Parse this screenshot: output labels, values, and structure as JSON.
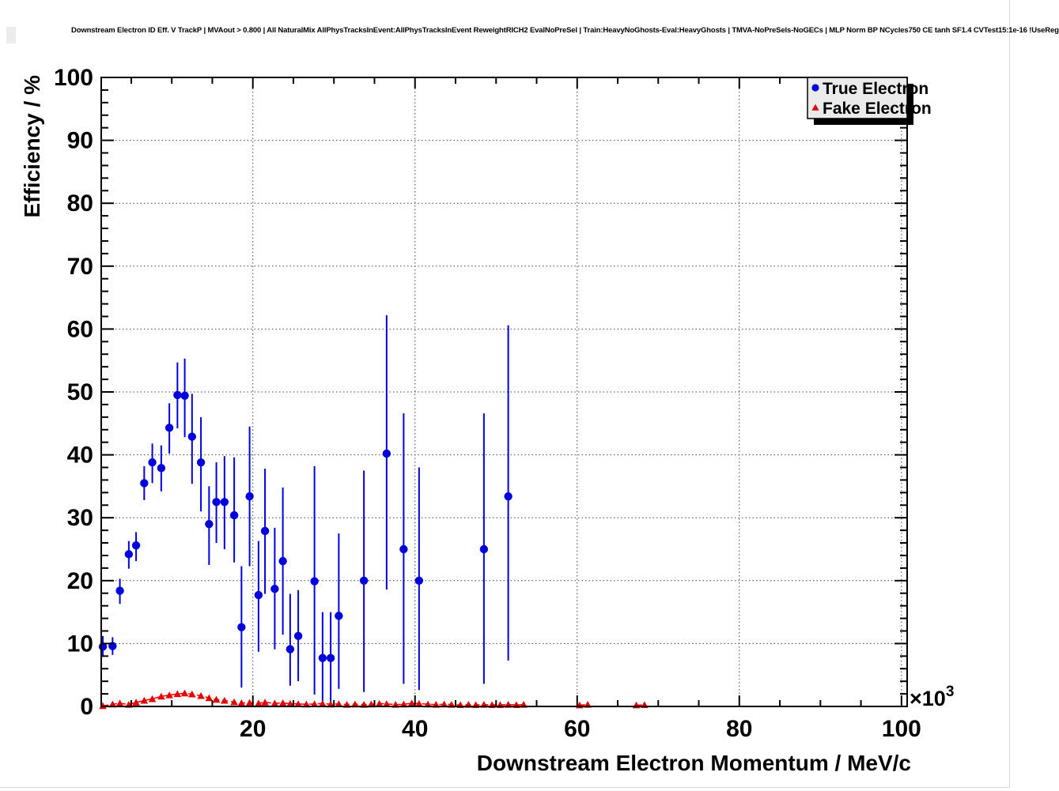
{
  "title": "Downstream Electron ID Eff. V TrackP | MVAout > 0.800 | All NaturalMix AllPhysTracksInEvent:AllPhysTracksInEvent ReweightRICH2 EvalNoPreSel | Train:HeavyNoGhosts-Eval:HeavyGhosts | TMVA-NoPreSels-NoGECs | MLP Norm BP NCycles750 CE tanh SF1.4 CVTest15:1e-16 !UseReg",
  "legend": {
    "entries": [
      {
        "label": "True Electron",
        "marker": "circle",
        "color": "#0000dd"
      },
      {
        "label": "Fake Electron",
        "marker": "triangle",
        "color": "#e60000"
      }
    ],
    "background": "#ebebeb",
    "border_color": "#000000",
    "shadow_color": "#000000"
  },
  "chart_data": {
    "type": "scatter",
    "title": "Downstream Electron ID Eff. V TrackP",
    "xlabel": "Downstream Electron Momentum / MeV/c",
    "ylabel": "Efficiency / %",
    "x_axis_multiplier": "×10³",
    "multiplier_base": "×10",
    "multiplier_exponent": "3",
    "xlim": [
      1.3,
      100.7
    ],
    "ylim": [
      0,
      100
    ],
    "x_ticks": [
      20,
      40,
      60,
      80,
      100
    ],
    "x_minor_tick_step": 5,
    "y_ticks": [
      0,
      10,
      20,
      30,
      40,
      50,
      60,
      70,
      80,
      90,
      100
    ],
    "y_minor_tick_step": 2,
    "grid": "dotted on x and y majors",
    "legend_position": "top-right",
    "x_units_note": "momentum values in units of 10^3 MeV/c",
    "points_format_true": [
      "x_10e3",
      "efficiency_pct",
      "err_low_pct",
      "err_high_pct"
    ],
    "points_format_fake": [
      "x_10e3",
      "efficiency_pct"
    ],
    "x_error_half_width": 0.45,
    "series": [
      {
        "name": "True Electron",
        "marker": "circle",
        "color": "#0000dd",
        "points": [
          [
            1.5,
            9.5,
            7.9,
            11.2
          ],
          [
            2.7,
            9.6,
            8.2,
            11.0
          ],
          [
            3.6,
            18.4,
            16.3,
            20.3
          ],
          [
            4.7,
            24.2,
            21.9,
            26.3
          ],
          [
            5.6,
            25.6,
            23.1,
            27.7
          ],
          [
            6.6,
            35.5,
            32.8,
            38.2
          ],
          [
            7.6,
            38.8,
            35.5,
            41.8
          ],
          [
            8.7,
            37.9,
            34.2,
            41.5
          ],
          [
            9.7,
            44.3,
            40.2,
            48.2
          ],
          [
            10.7,
            49.5,
            44.2,
            54.7
          ],
          [
            11.6,
            49.4,
            42.8,
            55.3
          ],
          [
            12.5,
            42.9,
            35.4,
            49.7
          ],
          [
            13.6,
            38.8,
            31.0,
            46.0
          ],
          [
            14.6,
            29.0,
            22.5,
            35.0
          ],
          [
            15.5,
            32.5,
            26.0,
            38.8
          ],
          [
            16.5,
            32.5,
            25.0,
            39.8
          ],
          [
            17.7,
            30.4,
            22.9,
            39.6
          ],
          [
            18.6,
            12.6,
            3.0,
            22.3
          ],
          [
            19.6,
            33.4,
            22.3,
            44.5
          ],
          [
            20.7,
            17.7,
            8.7,
            26.3
          ],
          [
            21.5,
            27.9,
            17.9,
            37.8
          ],
          [
            22.7,
            18.7,
            9.1,
            28.4
          ],
          [
            23.7,
            23.1,
            11.4,
            34.8
          ],
          [
            24.6,
            9.1,
            3.3,
            17.9
          ],
          [
            25.6,
            11.2,
            4.0,
            18.5
          ],
          [
            27.6,
            19.9,
            1.9,
            38.2
          ],
          [
            28.6,
            7.7,
            0.5,
            15.0
          ],
          [
            29.6,
            7.7,
            0.5,
            15.0
          ],
          [
            30.6,
            14.4,
            2.8,
            27.5
          ],
          [
            33.7,
            20.0,
            2.3,
            37.5
          ],
          [
            36.5,
            40.2,
            18.6,
            62.2
          ],
          [
            38.6,
            25.0,
            3.6,
            46.6
          ],
          [
            40.5,
            20.0,
            2.6,
            38.0
          ],
          [
            48.5,
            25.0,
            3.6,
            46.6
          ],
          [
            51.5,
            33.4,
            7.3,
            60.6
          ]
        ]
      },
      {
        "name": "Fake Electron",
        "marker": "triangle",
        "color": "#e60000",
        "line": "dashed",
        "points": [
          [
            1.5,
            0.1
          ],
          [
            2.7,
            0.35
          ],
          [
            3.6,
            0.5
          ],
          [
            4.7,
            0.3
          ],
          [
            5.6,
            0.65
          ],
          [
            6.6,
            0.95
          ],
          [
            7.6,
            1.2
          ],
          [
            8.7,
            1.6
          ],
          [
            9.7,
            1.8
          ],
          [
            10.7,
            2.0
          ],
          [
            11.6,
            2.1
          ],
          [
            12.5,
            1.95
          ],
          [
            13.6,
            1.7
          ],
          [
            14.6,
            1.35
          ],
          [
            15.5,
            1.1
          ],
          [
            16.5,
            0.95
          ],
          [
            17.7,
            0.7
          ],
          [
            18.6,
            0.55
          ],
          [
            19.6,
            0.6
          ],
          [
            20.7,
            0.5
          ],
          [
            21.5,
            0.65
          ],
          [
            22.7,
            0.5
          ],
          [
            23.7,
            0.55
          ],
          [
            24.6,
            0.45
          ],
          [
            25.6,
            0.4
          ],
          [
            26.6,
            0.35
          ],
          [
            27.6,
            0.4
          ],
          [
            28.6,
            0.45
          ],
          [
            29.6,
            0.35
          ],
          [
            30.6,
            0.4
          ],
          [
            31.6,
            0.3
          ],
          [
            32.6,
            0.35
          ],
          [
            33.7,
            0.3
          ],
          [
            34.6,
            0.35
          ],
          [
            35.6,
            0.45
          ],
          [
            36.5,
            0.4
          ],
          [
            37.6,
            0.3
          ],
          [
            38.6,
            0.35
          ],
          [
            39.6,
            0.5
          ],
          [
            40.5,
            0.45
          ],
          [
            41.6,
            0.35
          ],
          [
            42.6,
            0.3
          ],
          [
            43.6,
            0.35
          ],
          [
            44.5,
            0.3
          ],
          [
            45.6,
            0.25
          ],
          [
            46.6,
            0.3
          ],
          [
            47.5,
            0.25
          ],
          [
            48.5,
            0.3
          ],
          [
            49.5,
            0.25
          ],
          [
            50.5,
            0.25
          ],
          [
            51.5,
            0.3
          ],
          [
            52.5,
            0.25
          ],
          [
            53.4,
            0.3
          ],
          [
            60.3,
            0.2
          ],
          [
            61.3,
            0.3
          ],
          [
            67.3,
            0.2
          ],
          [
            68.3,
            0.25
          ]
        ]
      }
    ]
  }
}
